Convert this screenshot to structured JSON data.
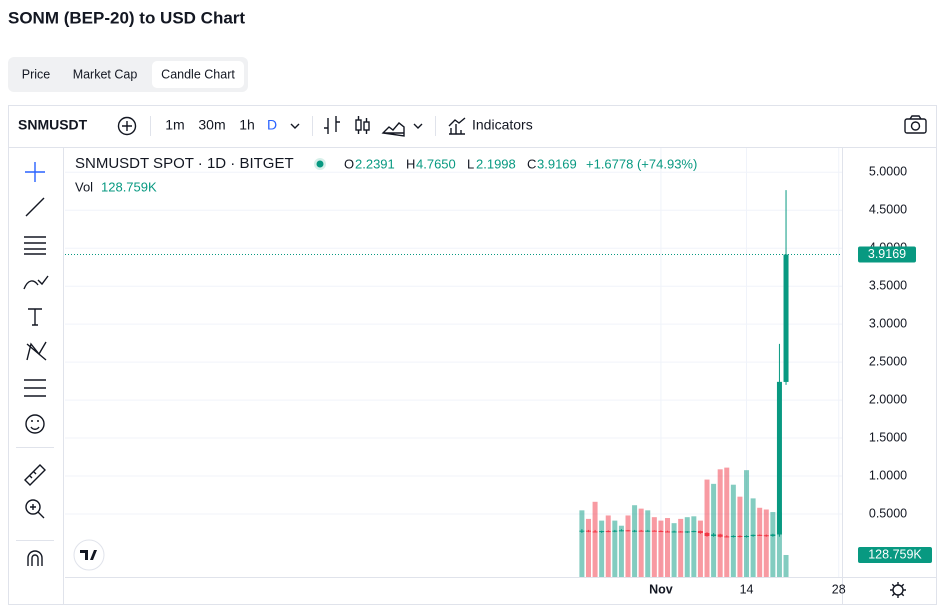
{
  "header": {
    "title": "SONM (BEP-20) to USD Chart"
  },
  "tabs": [
    "Price",
    "Market Cap",
    "Candle Chart"
  ],
  "toolbar": {
    "symbol": "SNMUSDT",
    "intervals": [
      "1m",
      "30m",
      "1h",
      "D"
    ],
    "indicators": "Indicators"
  },
  "legend": {
    "title": "SNMUSDT SPOT · 1D · BITGET",
    "o_label": "O",
    "o": "2.2391",
    "h_label": "H",
    "h": "4.7650",
    "l_label": "L",
    "l": "2.1998",
    "c_label": "C",
    "c": "3.9169",
    "change": "+1.6778 (+74.93%)",
    "vol_label": "Vol",
    "vol": "128.759K"
  },
  "chart_data": {
    "type": "candlestick",
    "x": [
      20,
      21,
      22,
      23,
      24,
      25,
      26,
      27,
      28,
      29,
      30,
      31,
      32,
      33,
      34,
      35,
      36,
      37,
      38,
      39,
      40,
      41,
      42,
      43,
      44,
      45,
      46,
      47,
      48,
      49,
      50,
      51
    ],
    "open": [
      0.27,
      0.28,
      0.27,
      0.265,
      0.275,
      0.27,
      0.28,
      0.285,
      0.275,
      0.28,
      0.275,
      0.28,
      0.275,
      0.27,
      0.265,
      0.27,
      0.26,
      0.27,
      0.275,
      0.25,
      0.21,
      0.23,
      0.205,
      0.2,
      0.21,
      0.2,
      0.21,
      0.225,
      0.22,
      0.21,
      0.23,
      2.2391
    ],
    "high": [
      0.3,
      0.29,
      0.29,
      0.28,
      0.285,
      0.29,
      0.3,
      0.29,
      0.29,
      0.29,
      0.29,
      0.285,
      0.285,
      0.28,
      0.28,
      0.275,
      0.275,
      0.28,
      0.28,
      0.26,
      0.25,
      0.24,
      0.22,
      0.22,
      0.22,
      0.22,
      0.23,
      0.23,
      0.23,
      0.24,
      2.74,
      4.765
    ],
    "low": [
      0.25,
      0.26,
      0.26,
      0.25,
      0.26,
      0.26,
      0.27,
      0.27,
      0.26,
      0.27,
      0.265,
      0.27,
      0.265,
      0.26,
      0.255,
      0.255,
      0.25,
      0.26,
      0.24,
      0.2,
      0.2,
      0.19,
      0.19,
      0.19,
      0.19,
      0.19,
      0.2,
      0.21,
      0.2,
      0.2,
      0.2,
      2.1998
    ],
    "close": [
      0.28,
      0.27,
      0.265,
      0.275,
      0.27,
      0.28,
      0.285,
      0.275,
      0.28,
      0.275,
      0.28,
      0.275,
      0.27,
      0.265,
      0.27,
      0.26,
      0.27,
      0.275,
      0.25,
      0.21,
      0.23,
      0.2,
      0.2,
      0.21,
      0.2,
      0.21,
      0.225,
      0.215,
      0.21,
      0.23,
      2.24,
      3.9169
    ],
    "volume": [
      390000,
      340000,
      440000,
      330000,
      360000,
      330000,
      300000,
      360000,
      420000,
      400000,
      390000,
      350000,
      330000,
      345000,
      315000,
      340000,
      350000,
      355000,
      330000,
      570000,
      545000,
      630000,
      640000,
      540000,
      470000,
      625000,
      460000,
      405000,
      395000,
      380000,
      380000,
      128759
    ],
    "xlim": [
      -58.5,
      59.5
    ],
    "xticks": [
      {
        "value": 32,
        "label": "Nov"
      },
      {
        "value": 45,
        "label": "14"
      },
      {
        "value": 59,
        "label": "28"
      }
    ],
    "ylim": [
      -0.33,
      5.32
    ],
    "yticks": [
      {
        "value": 0.5,
        "label": "0.5000"
      },
      {
        "value": 1,
        "label": "1.0000"
      },
      {
        "value": 1.5,
        "label": "1.5000"
      },
      {
        "value": 2,
        "label": "2.0000"
      },
      {
        "value": 2.5,
        "label": "2.5000"
      },
      {
        "value": 3,
        "label": "3.0000"
      },
      {
        "value": 3.5,
        "label": "3.5000"
      },
      {
        "value": 4,
        "label": "4.0000"
      },
      {
        "value": 4.5,
        "label": "4.5000"
      },
      {
        "value": 5,
        "label": "5.0000"
      }
    ],
    "volume_lim": [
      0,
      2510000
    ],
    "up_color": "#089981",
    "down_color": "#f23645",
    "grid": true,
    "last_price_label": "3.9169",
    "last_volume_label": "128.759K"
  }
}
